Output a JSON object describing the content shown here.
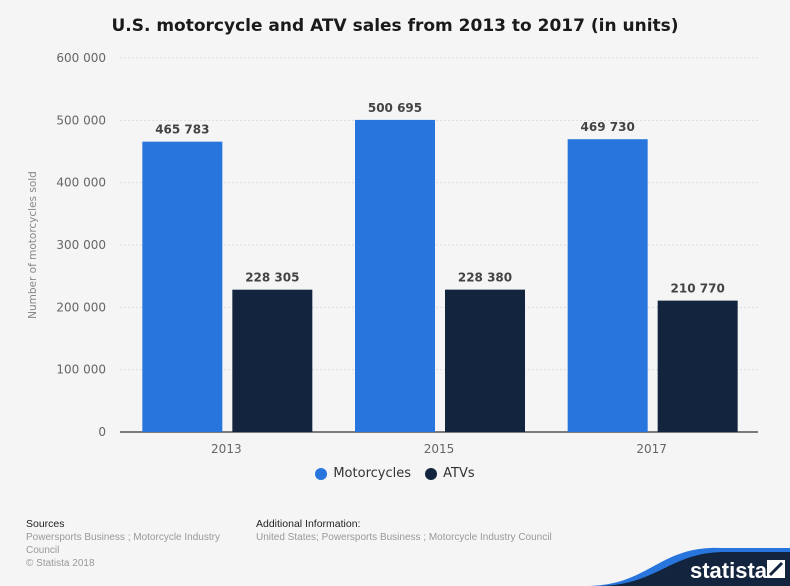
{
  "chart_data": {
    "type": "bar",
    "title": "U.S. motorcycle and ATV sales from 2013 to 2017 (in units)",
    "ylabel": "Number of motorcycles sold",
    "xlabel": "",
    "categories": [
      "2013",
      "2015",
      "2017"
    ],
    "series": [
      {
        "name": "Motorcycles",
        "values": [
          465783,
          500695,
          469730
        ],
        "color": "#2876dd",
        "labels": [
          "465 783",
          "500 695",
          "469 730"
        ]
      },
      {
        "name": "ATVs",
        "values": [
          228305,
          228380,
          210770
        ],
        "color": "#13253e",
        "labels": [
          "228 305",
          "228 380",
          "210 770"
        ]
      }
    ],
    "ylim": [
      0,
      600000
    ],
    "yticks": [
      0,
      100000,
      200000,
      300000,
      400000,
      500000,
      600000
    ],
    "ytick_labels": [
      "0",
      "100 000",
      "200 000",
      "300 000",
      "400 000",
      "500 000",
      "600 000"
    ],
    "grid": true,
    "legend": "bottom"
  },
  "footer": {
    "sources_heading": "Sources",
    "sources_text": "Powersports Business ; Motorcycle Industry Council",
    "copyright": "© Statista 2018",
    "info_heading": "Additional Information:",
    "info_text": "United States; Powersports Business ; Motorcycle Industry Council",
    "logo": "statista"
  }
}
